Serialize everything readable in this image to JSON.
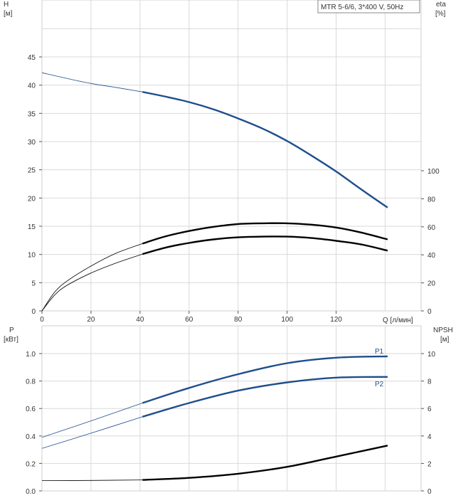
{
  "chart_data": [
    {
      "type": "line",
      "title_box": "MTR 5-6/6, 3*400 V, 50Hz",
      "ylabel": "H",
      "ylabel_unit": "[м]",
      "y2label": "eta",
      "y2label_unit": "[%]",
      "xlabel": "Q [л/мин]",
      "xlim": [
        0,
        140
      ],
      "x_ticks": [
        "0",
        "20",
        "40",
        "60",
        "80",
        "100",
        "120"
      ],
      "ylim": [
        0,
        50
      ],
      "y_ticks": [
        "0",
        "5",
        "10",
        "15",
        "20",
        "25",
        "30",
        "35",
        "40",
        "45"
      ],
      "y2lim": [
        0,
        200
      ],
      "y2_ticks": [
        "0",
        "20",
        "40",
        "60",
        "80",
        "100"
      ],
      "grid": true,
      "series": [
        {
          "axis": "left",
          "color": "#1f4e8c",
          "x": [
            0,
            10,
            20,
            30,
            41,
            50,
            60,
            70,
            80,
            90,
            100,
            110,
            120,
            130,
            141
          ],
          "y": [
            42.2,
            41.2,
            40.3,
            39.6,
            38.8,
            38.0,
            37.0,
            35.7,
            34.1,
            32.3,
            30.1,
            27.5,
            24.7,
            21.6,
            18.3
          ]
        },
        {
          "axis": "right",
          "color": "#000000",
          "x": [
            0,
            5,
            10,
            20,
            30,
            41,
            50,
            60,
            70,
            80,
            90,
            100,
            110,
            120,
            130,
            141
          ],
          "y": [
            0,
            13,
            21,
            32,
            41,
            48,
            53,
            57,
            60,
            62,
            62.5,
            62.5,
            61.5,
            59.5,
            56,
            51
          ]
        },
        {
          "axis": "right",
          "color": "#000000",
          "x": [
            0,
            5,
            10,
            20,
            30,
            41,
            50,
            60,
            70,
            80,
            90,
            100,
            110,
            120,
            130,
            141
          ],
          "y": [
            0,
            11,
            18,
            27,
            34,
            40.5,
            45,
            48.5,
            51,
            52.5,
            53,
            53,
            52,
            50,
            47.5,
            43
          ]
        }
      ]
    },
    {
      "type": "line",
      "ylabel": "P",
      "ylabel_unit": "[кВт]",
      "y2label": "NPSH",
      "y2label_unit": "[м]",
      "xlim": [
        0,
        140
      ],
      "ylim": [
        0,
        1.1
      ],
      "y_ticks": [
        "0.0",
        "0.2",
        "0.4",
        "0.6",
        "0.8",
        "1.0"
      ],
      "y2lim": [
        0,
        11
      ],
      "y2_ticks": [
        "0",
        "2",
        "4",
        "6",
        "8",
        "10"
      ],
      "grid": true,
      "series": [
        {
          "name": "P1",
          "axis": "left",
          "color": "#1f4e8c",
          "x": [
            0,
            20,
            41,
            60,
            80,
            100,
            120,
            141
          ],
          "y": [
            0.39,
            0.51,
            0.64,
            0.75,
            0.85,
            0.93,
            0.97,
            0.98
          ]
        },
        {
          "name": "P2",
          "axis": "left",
          "color": "#1f4e8c",
          "x": [
            0,
            20,
            41,
            60,
            80,
            100,
            120,
            141
          ],
          "y": [
            0.31,
            0.42,
            0.54,
            0.64,
            0.73,
            0.79,
            0.825,
            0.83
          ]
        },
        {
          "axis": "right",
          "color": "#000000",
          "x": [
            0,
            20,
            41,
            60,
            80,
            100,
            120,
            141
          ],
          "y": [
            0.75,
            0.76,
            0.8,
            0.95,
            1.25,
            1.75,
            2.5,
            3.3
          ]
        }
      ]
    }
  ]
}
